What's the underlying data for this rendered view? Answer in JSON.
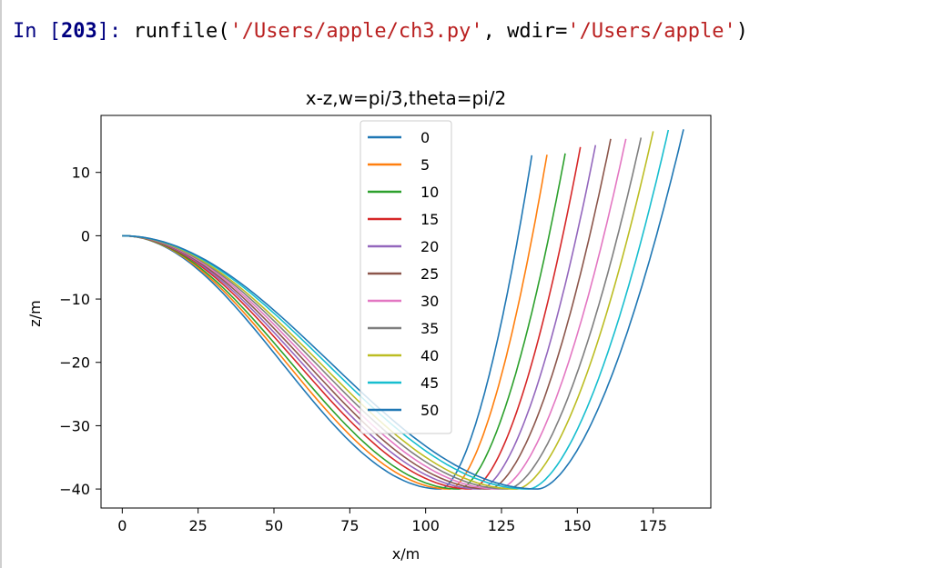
{
  "console": {
    "prompt_in": "In ",
    "prompt_open": "[",
    "prompt_number": "203",
    "prompt_close": "]: ",
    "func": "runfile(",
    "arg1": "'/Users/apple/ch3.py'",
    "sep": ", wdir=",
    "arg2": "'/Users/apple'",
    "close": ")"
  },
  "chart_data": {
    "type": "line",
    "title": "x-z,w=pi/3,theta=pi/2",
    "xlabel": "x/m",
    "ylabel": "z/m",
    "xlim": [
      -7,
      194
    ],
    "ylim": [
      -43,
      19
    ],
    "x_ticks": [
      0,
      25,
      50,
      75,
      100,
      125,
      150,
      175
    ],
    "y_ticks": [
      10,
      0,
      -10,
      -20,
      -30,
      -40
    ],
    "y_tick_labels": [
      "10",
      "0",
      "−10",
      "−20",
      "−30",
      "−40"
    ],
    "legend_position": "upper center",
    "series": [
      {
        "name": "0",
        "color": "#1f77b4",
        "bottom_x": 105,
        "end_x": 135,
        "end_z": 12.7
      },
      {
        "name": "5",
        "color": "#ff7f0e",
        "bottom_x": 108,
        "end_x": 140,
        "end_z": 12.8
      },
      {
        "name": "10",
        "color": "#2ca02c",
        "bottom_x": 111,
        "end_x": 146,
        "end_z": 13.0
      },
      {
        "name": "15",
        "color": "#d62728",
        "bottom_x": 115,
        "end_x": 151,
        "end_z": 14.0
      },
      {
        "name": "20",
        "color": "#9467bd",
        "bottom_x": 118,
        "end_x": 156,
        "end_z": 14.3
      },
      {
        "name": "25",
        "color": "#8c564b",
        "bottom_x": 121,
        "end_x": 161,
        "end_z": 15.3
      },
      {
        "name": "30",
        "color": "#e377c2",
        "bottom_x": 124,
        "end_x": 166,
        "end_z": 15.3
      },
      {
        "name": "35",
        "color": "#7f7f7f",
        "bottom_x": 127,
        "end_x": 171,
        "end_z": 15.5
      },
      {
        "name": "40",
        "color": "#bcbd22",
        "bottom_x": 130,
        "end_x": 175,
        "end_z": 16.5
      },
      {
        "name": "45",
        "color": "#17becf",
        "bottom_x": 134,
        "end_x": 180,
        "end_z": 16.7
      },
      {
        "name": "50",
        "color": "#1f77b4",
        "bottom_x": 137,
        "end_x": 185,
        "end_z": 16.8
      }
    ],
    "bottom_z": -40
  }
}
